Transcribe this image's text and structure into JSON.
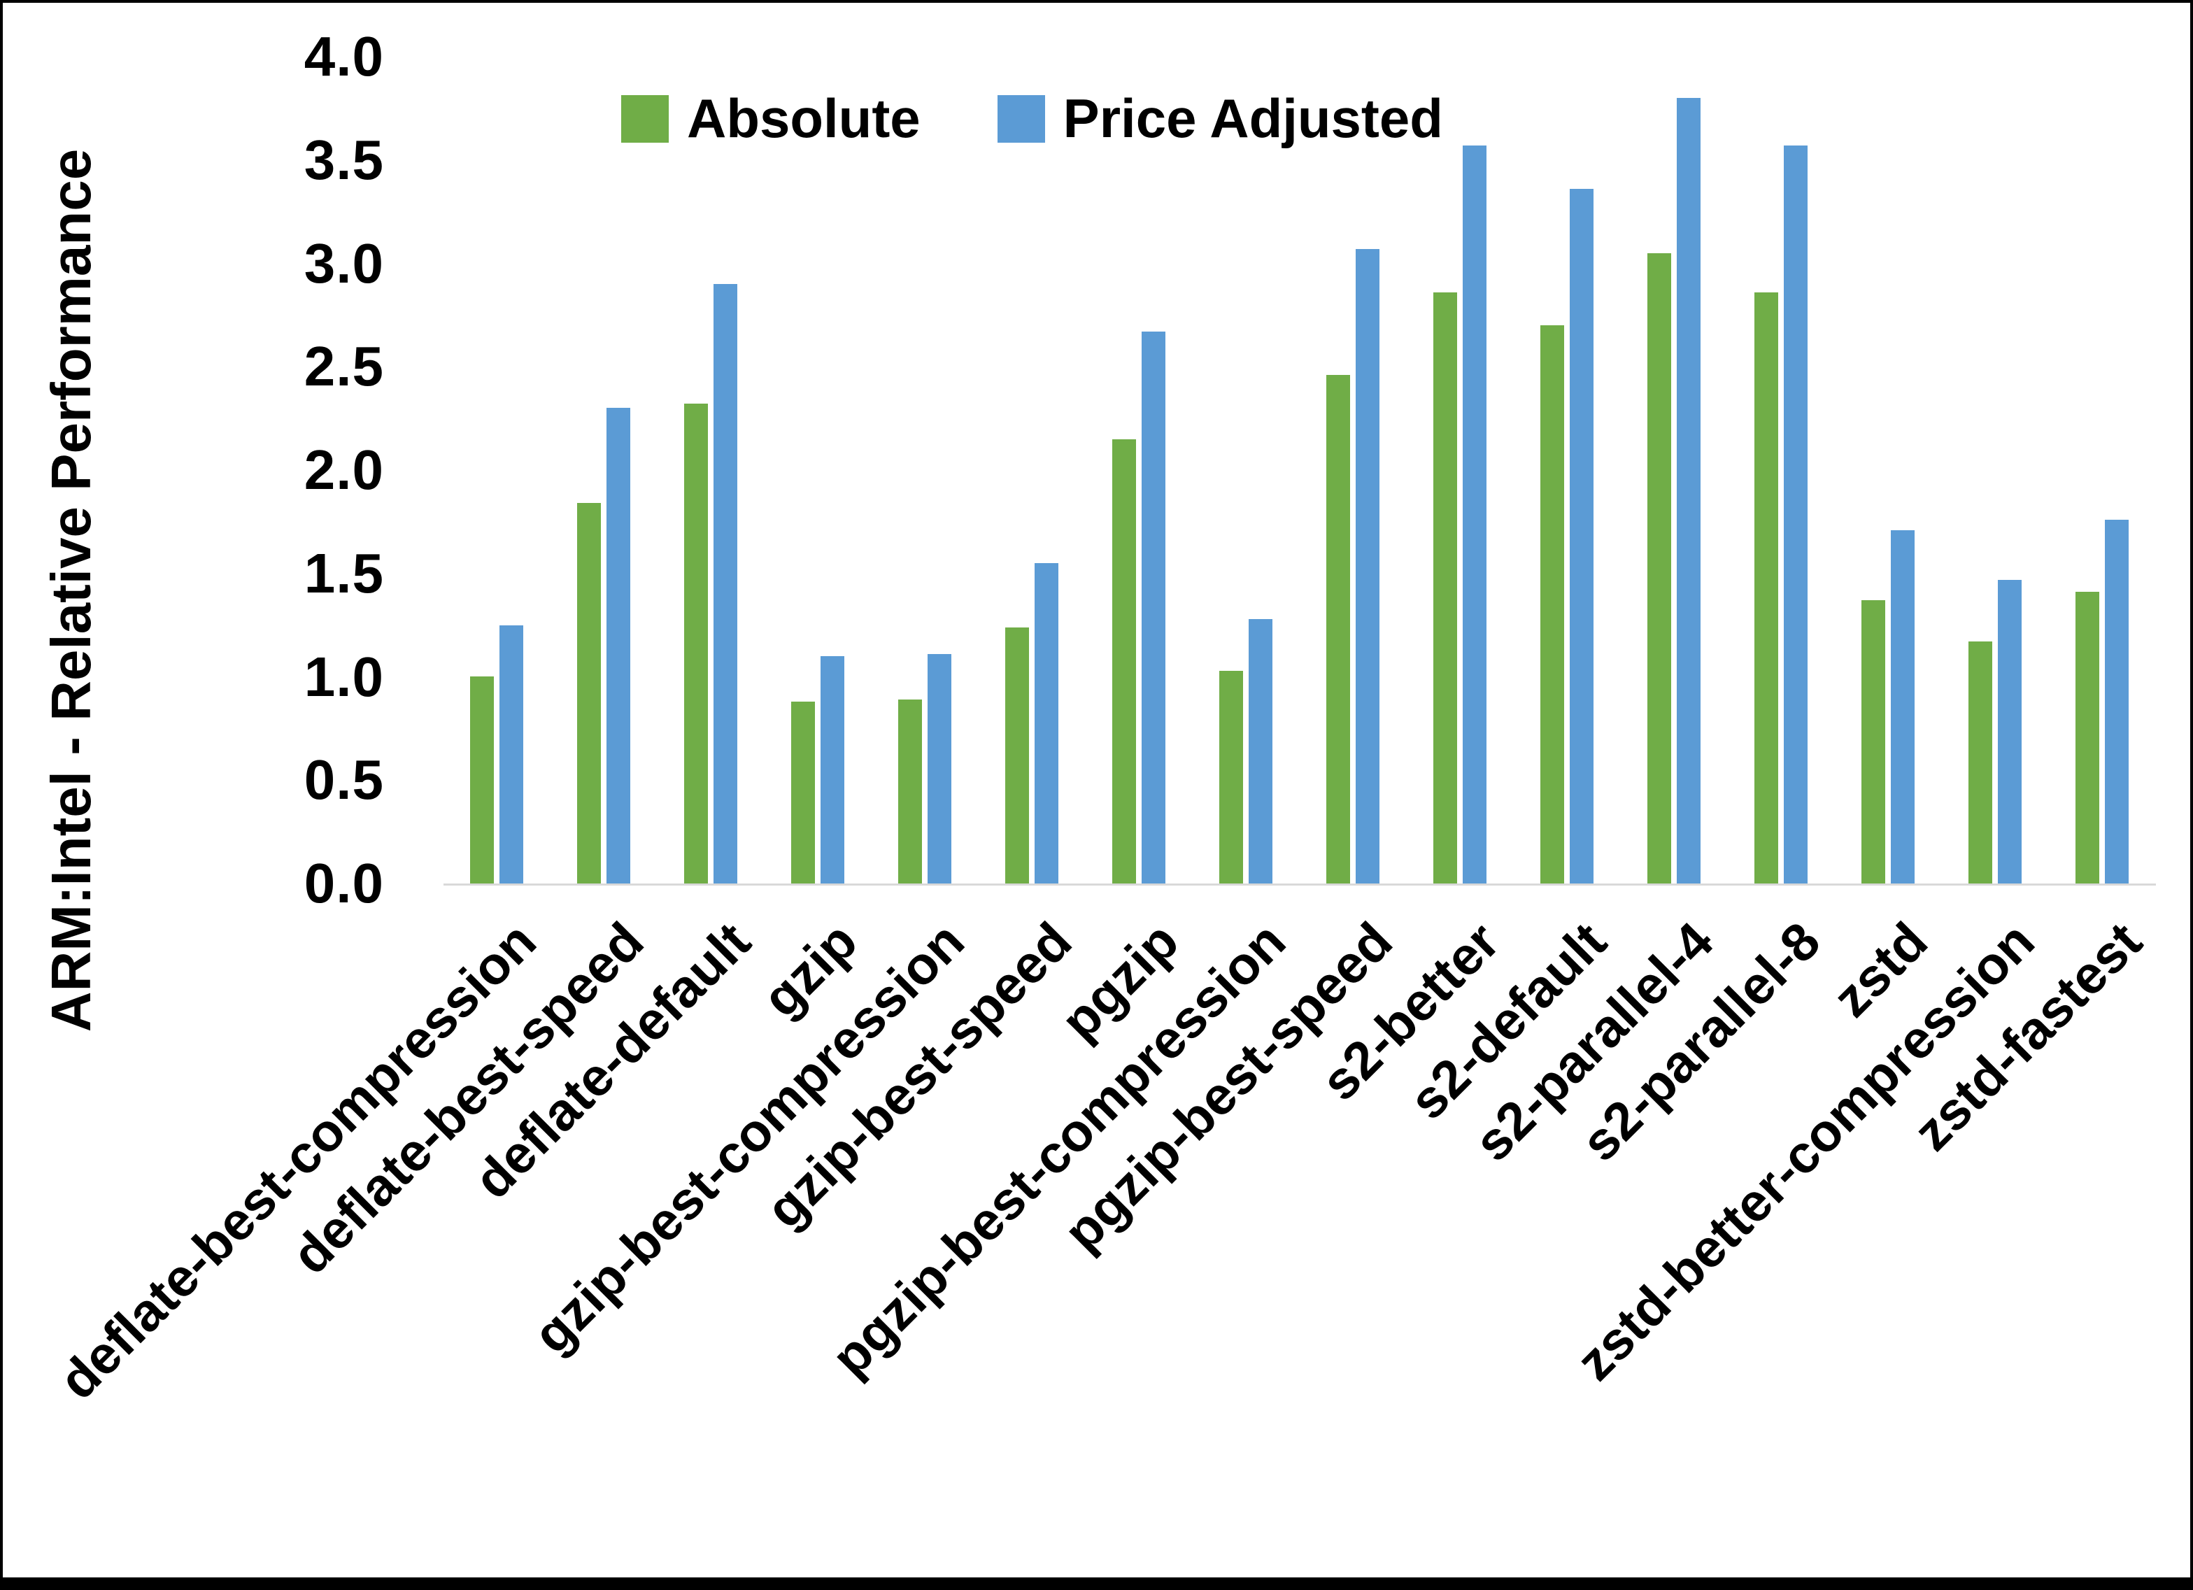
{
  "chart_data": {
    "type": "bar",
    "title": "",
    "xlabel": "",
    "ylabel": "ARM:Intel - Relative Performance",
    "ylim": [
      0.0,
      4.0
    ],
    "ytick_step": 0.5,
    "yticks": [
      "0.0",
      "0.5",
      "1.0",
      "1.5",
      "2.0",
      "2.5",
      "3.0",
      "3.5",
      "4.0"
    ],
    "grid": false,
    "legend_position": "top-center",
    "categories": [
      "deflate-best-compression",
      "deflate-best-speed",
      "deflate-default",
      "gzip",
      "gzip-best-compression",
      "gzip-best-speed",
      "pgzip",
      "pgzip-best-compression",
      "pgzip-best-speed",
      "s2-better",
      "s2-default",
      "s2-parallel-4",
      "s2-parallel-8",
      "zstd",
      "zstd-better-compression",
      "zstd-fastest"
    ],
    "series": [
      {
        "name": "Absolute",
        "color": "#70AD47",
        "values": [
          1.0,
          1.84,
          2.32,
          0.88,
          0.89,
          1.24,
          2.15,
          1.03,
          2.46,
          2.86,
          2.7,
          3.05,
          2.86,
          1.37,
          1.17,
          1.41
        ]
      },
      {
        "name": "Price Adjusted",
        "color": "#5B9BD5",
        "values": [
          1.25,
          2.3,
          2.9,
          1.1,
          1.11,
          1.55,
          2.67,
          1.28,
          3.07,
          3.57,
          3.36,
          3.8,
          3.57,
          1.71,
          1.47,
          1.76
        ]
      }
    ],
    "colors": {
      "axis_line": "#d9d9d9",
      "text": "#000000",
      "background": "#ffffff"
    }
  }
}
